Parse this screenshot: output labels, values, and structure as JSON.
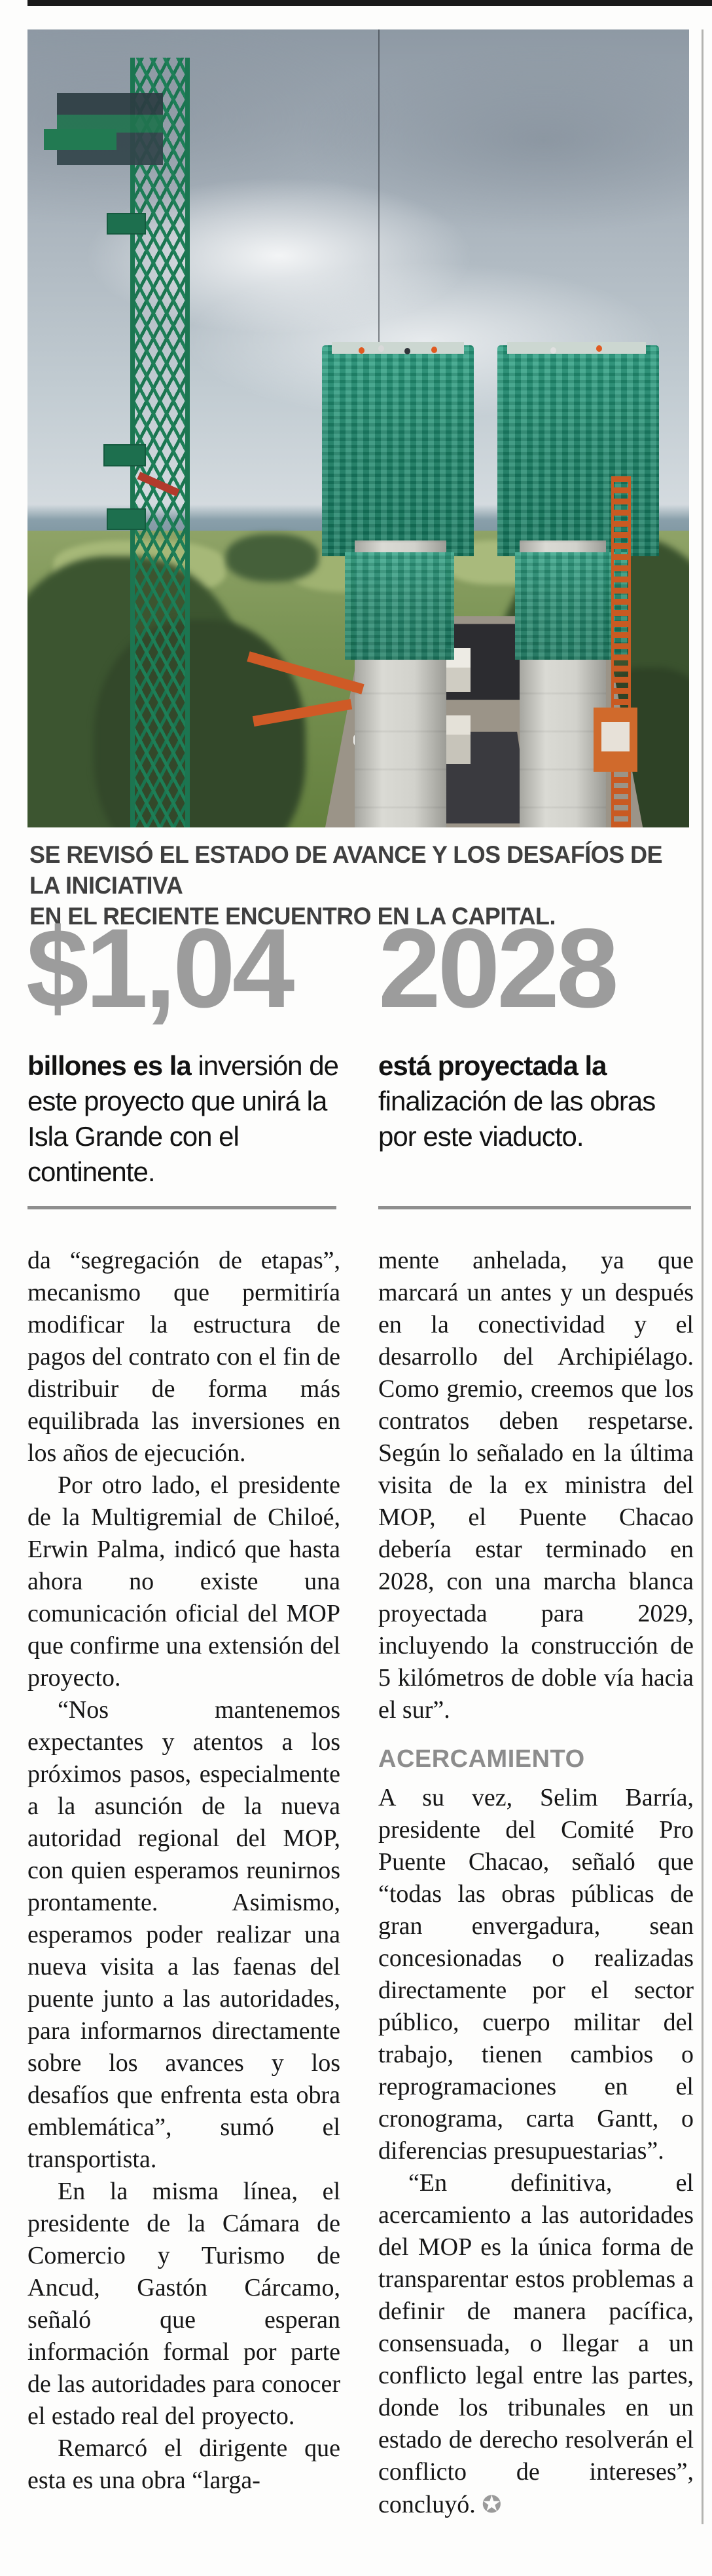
{
  "photo": {
    "description": "aerial view of Chacao bridge construction: green tower crane, two concrete pylons wrapped in green mesh, access road and construction yard below, cloudy sky",
    "caption": {
      "line1": "SE REVISÓ EL ESTADO DE AVANCE Y LOS DESAFÍOS DE LA INICIATIVA",
      "line2": "EN EL RECIENTE ENCUENTRO EN LA CAPITAL."
    }
  },
  "stats": {
    "left": {
      "value": "$1,04",
      "lead_bold": "billones es la",
      "lead_rest": "inversión de este proyecto que unirá la Isla Grande con el continente."
    },
    "right": {
      "value": "2028",
      "lead_bold": "está proyectada la",
      "lead_rest": "finalización de las obras por este viaducto."
    }
  },
  "article": {
    "left_column": {
      "p1": "da “segregación de etapas”, mecanismo que permitiría modificar la estructura de pagos del contrato con el fin de distribuir de forma más equilibrada las inversiones en los años de ejecución.",
      "p2": "Por otro lado, el presidente de la Multigremial de Chiloé, Erwin Palma, indicó que hasta ahora no existe una comunicación oficial del MOP que confirme una extensión del proyecto.",
      "p3": "“Nos mantenemos expectantes y atentos a los próximos pasos, especialmente a la asunción de la nueva autoridad regional del MOP, con quien esperamos reunirnos prontamente. Asimismo, esperamos poder realizar una nueva visita a las faenas del puente junto a las autoridades, para informarnos directamente sobre los avances y los desafíos que enfrenta esta obra emblemática”, sumó el transportista.",
      "p4": "En la misma línea, el presidente de la Cámara de Comercio y Turismo de Ancud, Gastón Cárcamo, señaló que esperan información formal por parte de las autoridades para conocer el estado real del proyecto.",
      "p5": "Remarcó el dirigente que esta es una obra “larga-"
    },
    "right_column": {
      "p1": "mente anhelada, ya que marcará un antes y un después en la conectividad y el desarrollo del Archipiélago. Como gremio, creemos que los contratos deben respetarse. Según lo señalado en la última visita de la ex ministra del MOP, el Puente Chacao debería estar terminado en 2028, con una marcha blanca proyectada para 2029, incluyendo la construcción de 5 kilómetros de doble vía hacia el sur”.",
      "subhead": "ACERCAMIENTO",
      "p2": "A su vez, Selim Barría, presidente del Comité Pro Puente Chacao, señaló que “todas las obras públicas de gran envergadura, sean concesionadas o realizadas directamente por el sector público, cuerpo militar del trabajo, tienen cambios o reprogramaciones en el cronograma, carta Gantt, o diferencias presupuestarias”.",
      "p3": "“En definitiva, el acercamiento a las autoridades del MOP es la única forma de transparentar estos problemas a definir de manera pacífica, consensuada, o llegar a un conflicto legal entre las partes, donde los tribunales en un estado de derecho resolverán el conflicto de intereses”, concluyó.",
      "end_mark": "✪"
    }
  },
  "colors": {
    "stat_number": "#9c9c9c",
    "caption_text": "#3f3f3f",
    "body_text": "#161616",
    "subhead_gray": "#8c8c8c",
    "divider_rule": "#8f8f8f",
    "crane_green": "#1c7551",
    "mesh_green": "#1f8a6e",
    "accent_orange": "#cf5a26"
  }
}
